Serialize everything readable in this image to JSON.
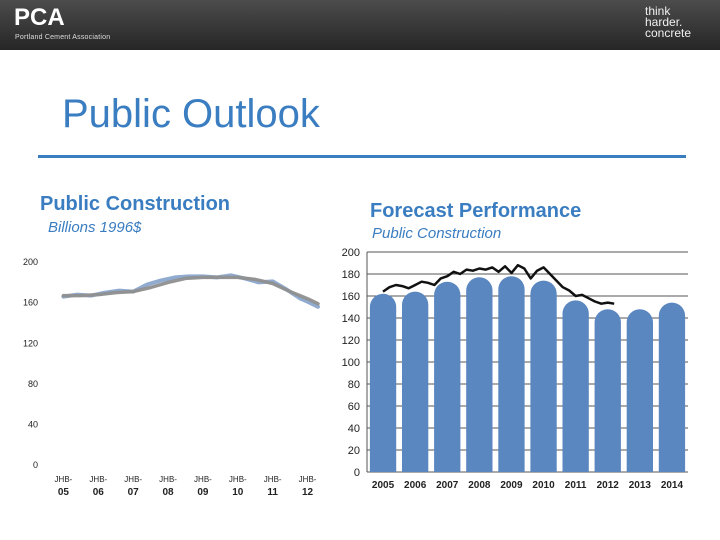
{
  "header": {
    "logo": "PCA",
    "logo_subtitle": "Portland Cement Association",
    "tagline": [
      "think",
      "harder.",
      "concrete"
    ]
  },
  "slide": {
    "title": "Public Outlook"
  },
  "left_panel": {
    "title": "Public Construction",
    "subtitle": "Billions 1996$"
  },
  "right_panel": {
    "title": "Forecast Performance",
    "subtitle": "Public Construction"
  },
  "colors": {
    "accent_blue": "#3a7dc1",
    "bar_fill": "#5b87c1",
    "left_line_a": "#8aa6cc",
    "left_line_b": "#8f8f8f",
    "right_line": "#111111"
  },
  "chart_data": [
    {
      "type": "line",
      "title": "Public Construction",
      "subtitle": "Billions 1996$",
      "x_ticks": [
        "JHB-05",
        "JHB-06",
        "JHB-07",
        "JHB-08",
        "JHB-09",
        "JHB-10",
        "JHB-11",
        "JHB-12"
      ],
      "y_ticks": [
        0,
        40,
        80,
        120,
        160,
        200
      ],
      "ylim": [
        0,
        210
      ],
      "grid": false,
      "series": [
        {
          "name": "",
          "x": [
            0,
            0.4,
            0.8,
            1.2,
            1.6,
            2.0,
            2.4,
            2.8,
            3.2,
            3.6,
            4.0,
            4.4,
            4.8,
            5.2,
            5.6,
            6.0,
            6.4,
            6.8,
            7.0,
            7.3
          ],
          "values": [
            165,
            167,
            166,
            169,
            171,
            170,
            177,
            181,
            184,
            185,
            185,
            184,
            186,
            183,
            179,
            180,
            172,
            163,
            160,
            155
          ]
        },
        {
          "name": "",
          "x": [
            0,
            0.5,
            1.0,
            1.5,
            2.0,
            2.5,
            3.0,
            3.5,
            4.0,
            4.5,
            5.0,
            5.5,
            6.0,
            6.5,
            7.0,
            7.3
          ],
          "values": [
            166,
            166,
            167,
            169,
            170,
            174,
            179,
            183,
            184,
            184,
            184,
            182,
            178,
            170,
            163,
            158
          ]
        }
      ]
    },
    {
      "type": "bar",
      "title": "Forecast Performance",
      "subtitle": "Public Construction",
      "categories": [
        "2005",
        "2006",
        "2007",
        "2008",
        "2009",
        "2010",
        "2011",
        "2012",
        "2013",
        "2014"
      ],
      "y_ticks": [
        0,
        20,
        40,
        60,
        80,
        100,
        120,
        140,
        160,
        180,
        200
      ],
      "ylim": [
        0,
        200
      ],
      "grid": true,
      "series": [
        {
          "name": "",
          "values": [
            162,
            164,
            173,
            177,
            178,
            174,
            156,
            148,
            148,
            154
          ]
        }
      ],
      "overlay_line": {
        "x": [
          0,
          0.2,
          0.4,
          0.6,
          0.8,
          1.0,
          1.2,
          1.4,
          1.6,
          1.8,
          2.0,
          2.2,
          2.4,
          2.6,
          2.8,
          3.0,
          3.2,
          3.4,
          3.6,
          3.8,
          4.0,
          4.2,
          4.4,
          4.6,
          4.8,
          5.0,
          5.2,
          5.4,
          5.6,
          5.8,
          6.0,
          6.2,
          6.4,
          6.6,
          6.8,
          7.0,
          7.2
        ],
        "values": [
          164,
          168,
          170,
          169,
          167,
          170,
          173,
          172,
          170,
          176,
          178,
          182,
          180,
          184,
          183,
          185,
          184,
          186,
          182,
          187,
          181,
          188,
          185,
          176,
          183,
          186,
          180,
          174,
          168,
          165,
          160,
          161,
          158,
          155,
          153,
          154,
          153
        ]
      }
    }
  ]
}
